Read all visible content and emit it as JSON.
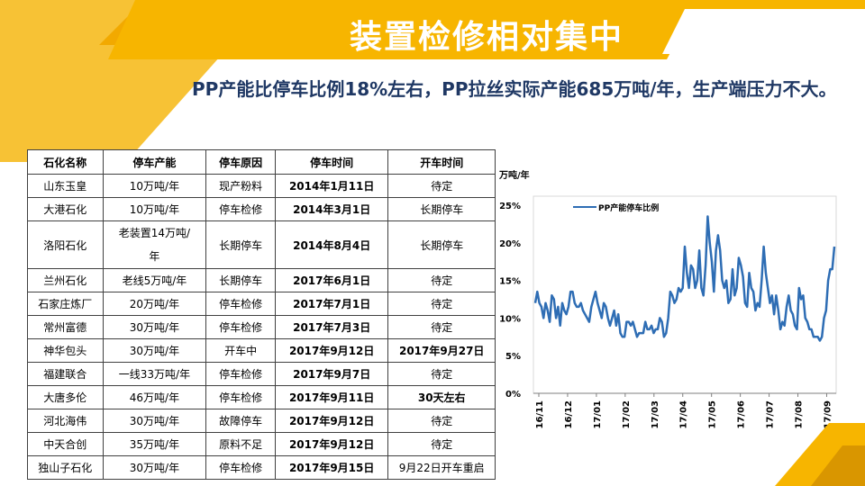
{
  "header": {
    "title": "装置检修相对集中",
    "subtitle": "PP产能比停车比例18%左右，PP拉丝实际产能685万吨/年，生产端压力不大。"
  },
  "colors": {
    "accent_yellow": "#F7B500",
    "accent_dark": "#D99600",
    "line_blue": "#2E6DB4",
    "text_dark": "#1F3864"
  },
  "table": {
    "headers": [
      "石化名称",
      "停车产能",
      "停车原因",
      "停车时间",
      "开车时间"
    ],
    "rows": [
      [
        "山东玉皇",
        "10万吨/年",
        "现产粉料",
        "2014年1月11日",
        "待定"
      ],
      [
        "大港石化",
        "10万吨/年",
        "停车检修",
        "2014年3月1日",
        "长期停车"
      ],
      [
        "洛阳石化",
        "老装置14万吨/年",
        "长期停车",
        "2014年8月4日",
        "长期停车"
      ],
      [
        "兰州石化",
        "老线5万吨/年",
        "长期停车",
        "2017年6月1日",
        "待定"
      ],
      [
        "石家庄炼厂",
        "20万吨/年",
        "停车检修",
        "2017年7月1日",
        "待定"
      ],
      [
        "常州富德",
        "30万吨/年",
        "停车检修",
        "2017年7月3日",
        "待定"
      ],
      [
        "神华包头",
        "30万吨/年",
        "开车中",
        "2017年9月12日",
        "2017年9月27日"
      ],
      [
        "福建联合",
        "一线33万吨/年",
        "停车检修",
        "2017年9月7日",
        "待定"
      ],
      [
        "大唐多伦",
        "46万吨/年",
        "停车检修",
        "2017年9月11日",
        "30天左右"
      ],
      [
        "河北海伟",
        "30万吨/年",
        "故障停车",
        "2017年9月12日",
        "待定"
      ],
      [
        "中天合创",
        "35万吨/年",
        "原料不足",
        "2017年9月12日",
        "待定"
      ],
      [
        "独山子石化",
        "30万吨/年",
        "停车检修",
        "2017年9月15日",
        "9月22日开车重启"
      ]
    ]
  },
  "chart_data": {
    "type": "line",
    "unit_label": "万吨/年",
    "legend": "PP产能停车比例",
    "legend_position": "top-left-inside",
    "y_ticks": [
      "0%",
      "5%",
      "10%",
      "15%",
      "20%",
      "25%"
    ],
    "ylim": [
      0,
      25
    ],
    "x_ticks": [
      "16/11",
      "16/12",
      "17/01",
      "17/02",
      "17/03",
      "17/04",
      "17/05",
      "17/06",
      "17/07",
      "17/08",
      "17/09"
    ],
    "grid": false,
    "series": [
      {
        "name": "PP产能停车比例",
        "values": [
          12,
          13.5,
          12,
          11.5,
          10,
          12,
          11,
          9.5,
          13,
          12.5,
          10,
          11.5,
          9,
          12,
          11,
          10.5,
          11.5,
          13.5,
          13.5,
          12,
          11.5,
          11.5,
          12,
          11,
          10.5,
          10,
          9.5,
          11.5,
          12.5,
          13.5,
          12,
          11,
          10,
          12,
          11.5,
          10,
          9,
          10,
          11,
          9,
          10.5,
          8,
          7.5,
          7.5,
          9.5,
          9.5,
          9,
          9.5,
          8.5,
          7.5,
          8,
          8,
          8,
          9.5,
          8.5,
          8.5,
          9,
          8,
          8.5,
          8.5,
          10,
          9.5,
          7.5,
          8,
          10,
          13.5,
          13,
          12,
          12.5,
          14,
          13.5,
          14,
          19.5,
          16,
          14,
          17,
          16.5,
          14,
          15,
          19,
          14,
          13,
          17,
          23.5,
          20,
          17.5,
          13.5,
          19,
          21,
          19,
          15,
          14,
          15,
          12,
          12.5,
          16.5,
          13,
          14,
          18,
          17,
          15.5,
          12,
          11.5,
          16,
          14,
          13.5,
          11,
          12,
          11.5,
          15,
          19.5,
          16,
          14,
          12,
          13,
          10.5,
          13,
          11,
          8.5,
          9.5,
          9,
          11.5,
          13,
          11,
          10.5,
          9,
          8.5,
          14,
          12.5,
          13,
          10,
          9.5,
          8.5,
          8.5,
          7.5,
          7.5,
          7.5,
          7,
          7.5,
          10,
          11,
          15,
          16.5,
          16.5,
          19.5
        ]
      }
    ]
  }
}
